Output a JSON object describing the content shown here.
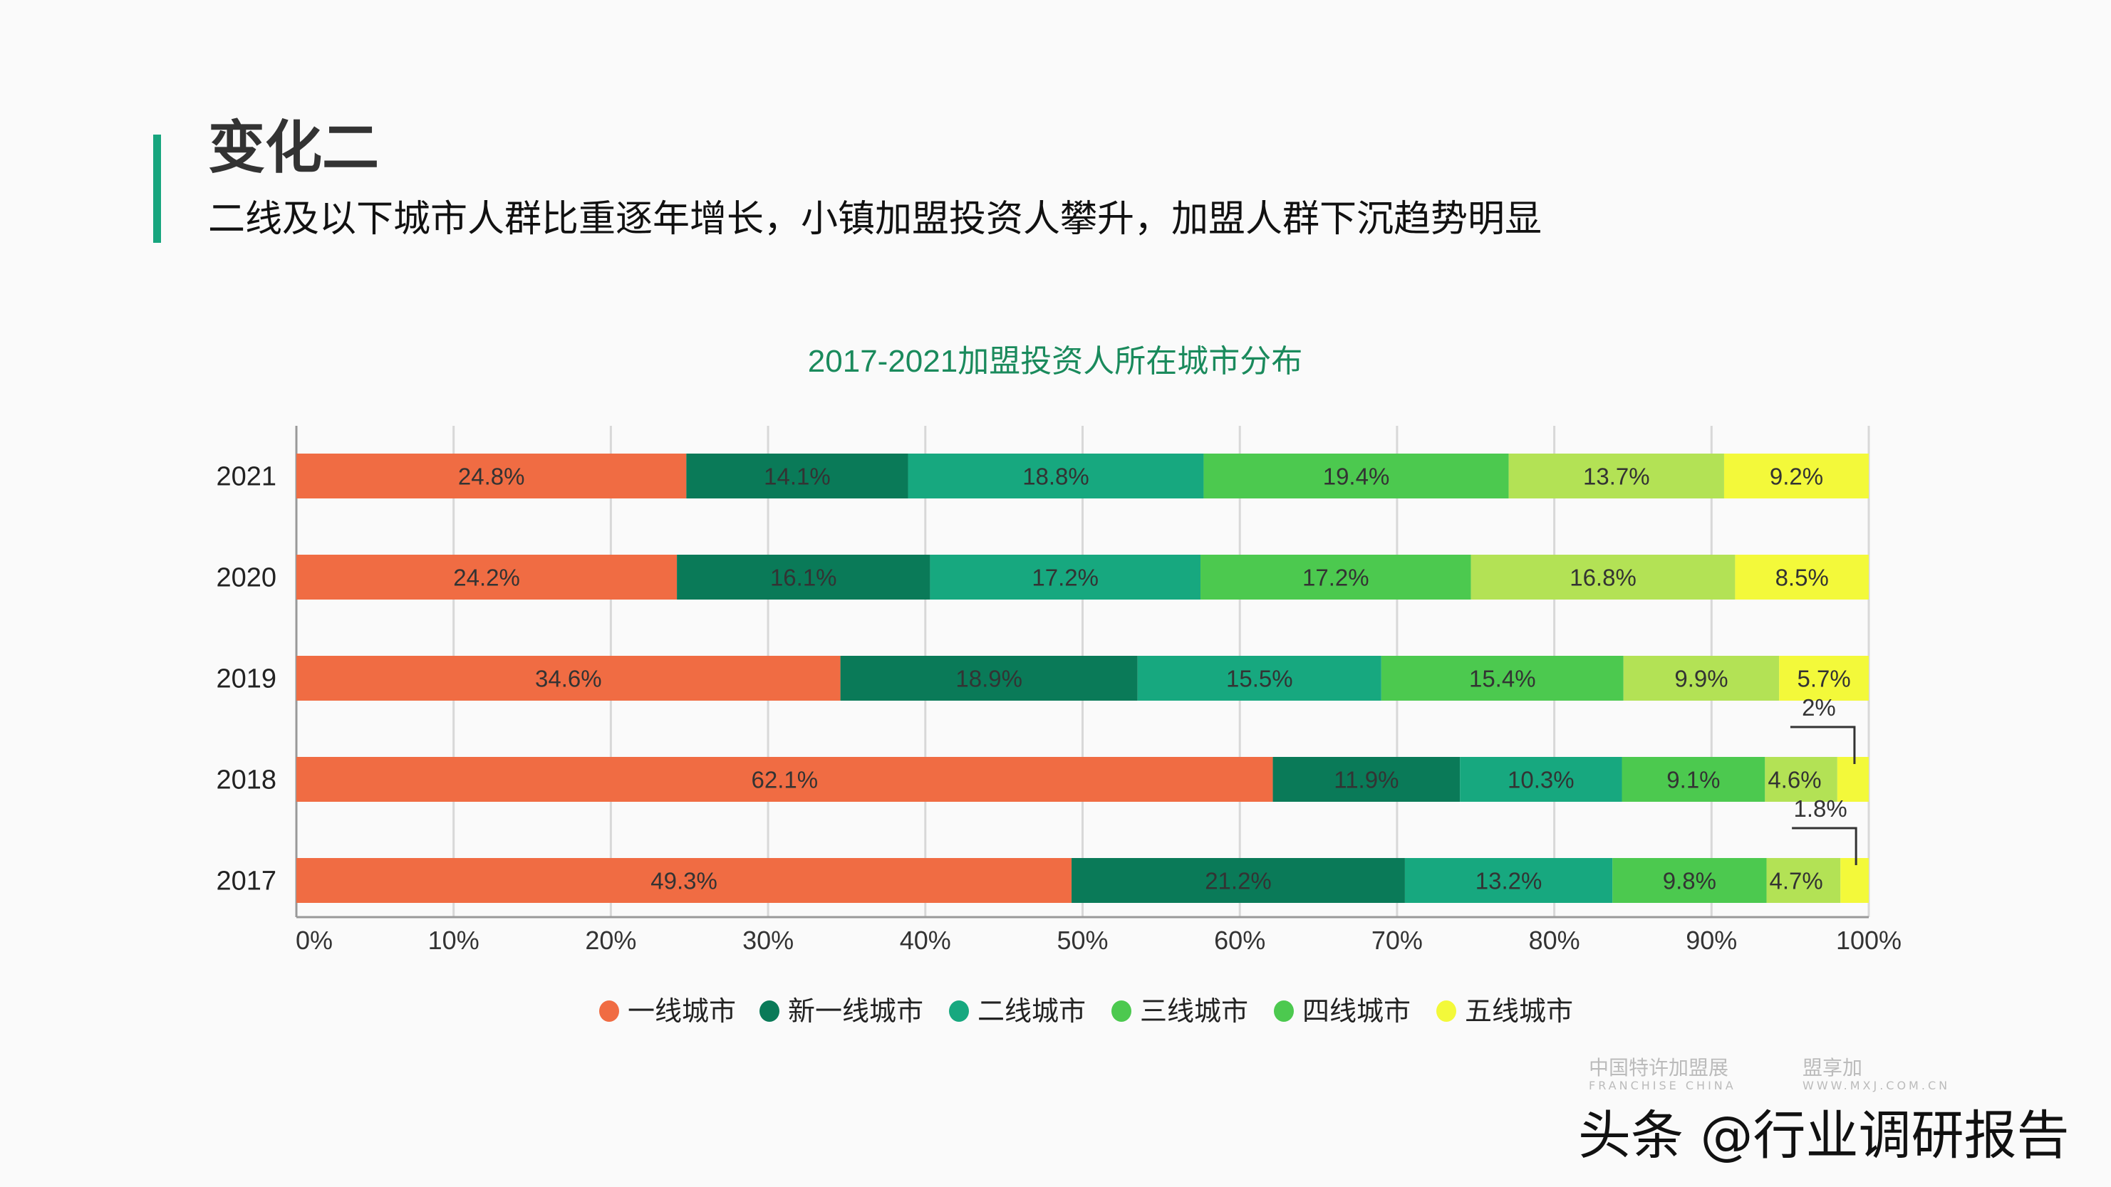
{
  "header": {
    "title": "变化二",
    "subtitle": "二线及以下城市人群比重逐年增长，小镇加盟投资人攀升，加盟人群下沉趋势明显",
    "accent_color": "#17a57e"
  },
  "chart_data": {
    "type": "bar",
    "orientation": "horizontal",
    "stacked": true,
    "title": "2017-2021加盟投资人所在城市分布",
    "categories": [
      "2021",
      "2020",
      "2019",
      "2018",
      "2017"
    ],
    "series": [
      {
        "name": "一线城市",
        "color": "#f06c43",
        "values": [
          24.8,
          24.2,
          34.6,
          62.1,
          49.3
        ],
        "labels": [
          "24.8%",
          "24.2%",
          "34.6%",
          "62.1%",
          "49.3%"
        ]
      },
      {
        "name": "新一线城市",
        "color": "#0a7a58",
        "values": [
          14.1,
          16.1,
          18.9,
          11.9,
          21.2
        ],
        "labels": [
          "14.1%",
          "16.1%",
          "18.9%",
          "11.9%",
          "21.2%"
        ]
      },
      {
        "name": "二线城市",
        "color": "#17a87f",
        "values": [
          18.8,
          17.2,
          15.5,
          10.3,
          13.2
        ],
        "labels": [
          "18.8%",
          "17.2%",
          "15.5%",
          "10.3%",
          "13.2%"
        ]
      },
      {
        "name": "三线城市",
        "color": "#4cc94f",
        "values": [
          19.4,
          17.2,
          15.4,
          9.1,
          9.8
        ],
        "labels": [
          "19.4%",
          "17.2%",
          "15.4%",
          "9.1%",
          "9.8%"
        ]
      },
      {
        "name": "四线城市",
        "color": "#b3e255",
        "legend_color": "#4cc94f",
        "values": [
          13.7,
          16.8,
          9.9,
          4.6,
          4.7
        ],
        "labels": [
          "13.7%",
          "16.8%",
          "9.9%",
          "4.6%",
          "4.7%"
        ]
      },
      {
        "name": "五线城市",
        "color": "#f3f93a",
        "values": [
          9.2,
          8.5,
          5.7,
          2.0,
          1.8
        ],
        "labels": [
          "9.2%",
          "8.5%",
          "5.7%",
          "2%",
          "1.8%"
        ]
      }
    ],
    "xlim": [
      0,
      100
    ],
    "xticks": [
      "0%",
      "10%",
      "20%",
      "30%",
      "40%",
      "50%",
      "60%",
      "70%",
      "80%",
      "90%",
      "100%"
    ],
    "grid": true,
    "legend_position": "bottom",
    "title_color": "#1a8a5c"
  },
  "watermarks": {
    "logo1": "中国特许加盟展",
    "logo1_sub": "FRANCHISE CHINA",
    "logo2": "盟享加",
    "logo2_sub": "WWW.MXJ.COM.CN",
    "credit": "头条 @行业调研报告"
  }
}
